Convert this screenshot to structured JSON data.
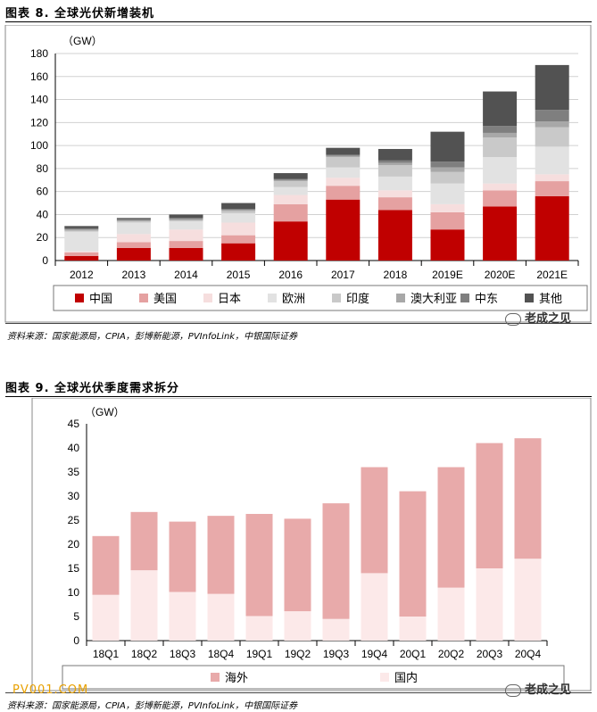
{
  "chart1_title": "图表 8. 全球光伏新增装机",
  "chart2_title": "图表 9. 全球光伏季度需求拆分",
  "source_text": "资料来源：国家能源局，CPIA，彭博新能源，PVInfoLink，中银国际证券",
  "watermark": "老成之见",
  "site_watermark": "PV001.COM",
  "chart_data": [
    {
      "type": "bar",
      "stacked": true,
      "title": "图表 8. 全球光伏新增装机",
      "unit_label": "（GW）",
      "categories": [
        "2012",
        "2013",
        "2014",
        "2015",
        "2016",
        "2017",
        "2018",
        "2019E",
        "2020E",
        "2021E"
      ],
      "ylim": [
        0,
        180
      ],
      "yticks": [
        0,
        20,
        40,
        60,
        80,
        100,
        120,
        140,
        160,
        180
      ],
      "grid": true,
      "legend_position": "bottom",
      "series": [
        {
          "name": "中国",
          "color": "#c00000",
          "values": [
            4,
            11,
            11,
            15,
            34,
            53,
            44,
            27,
            47,
            56
          ]
        },
        {
          "name": "美国",
          "color": "#e5a1a1",
          "values": [
            3,
            5,
            6,
            7,
            15,
            12,
            11,
            15,
            14,
            13
          ]
        },
        {
          "name": "日本",
          "color": "#f6dede",
          "values": [
            1,
            7,
            10,
            11,
            8,
            7,
            6,
            7,
            6,
            6
          ]
        },
        {
          "name": "欧洲",
          "color": "#e2e2e2",
          "values": [
            17,
            10,
            7,
            8,
            7,
            9,
            12,
            18,
            23,
            24
          ]
        },
        {
          "name": "印度",
          "color": "#c9c9c9",
          "values": [
            1,
            1,
            1,
            2,
            5,
            9,
            10,
            10,
            17,
            17
          ]
        },
        {
          "name": "澳大利亚",
          "color": "#a8a8a8",
          "values": [
            1,
            1,
            1,
            1,
            1,
            1,
            2,
            4,
            4,
            5
          ]
        },
        {
          "name": "中东",
          "color": "#7f7f7f",
          "values": [
            1,
            1,
            1,
            1,
            1,
            1,
            2,
            5,
            6,
            10
          ]
        },
        {
          "name": "其他",
          "color": "#525252",
          "values": [
            2,
            1,
            3,
            5,
            5,
            6,
            10,
            26,
            30,
            39
          ]
        }
      ]
    },
    {
      "type": "bar",
      "stacked": true,
      "title": "图表 9. 全球光伏季度需求拆分",
      "unit_label": "（GW）",
      "categories": [
        "18Q1",
        "18Q2",
        "18Q3",
        "18Q4",
        "19Q1",
        "19Q2",
        "19Q3",
        "19Q4",
        "20Q1",
        "20Q2",
        "20Q3",
        "20Q4"
      ],
      "ylim": [
        0,
        45
      ],
      "yticks": [
        0,
        5,
        10,
        15,
        20,
        25,
        30,
        35,
        40,
        45
      ],
      "grid": false,
      "legend_position": "bottom",
      "series": [
        {
          "name": "国内",
          "color": "#fce9e9",
          "values": [
            9.5,
            14.6,
            10.1,
            9.7,
            5.1,
            6.1,
            4.5,
            14,
            5,
            11,
            15,
            17
          ]
        },
        {
          "name": "海外",
          "color": "#e8aaaa",
          "values": [
            12.2,
            12.1,
            14.6,
            16.2,
            21.2,
            19.2,
            24,
            22,
            26,
            25,
            26,
            25
          ]
        }
      ],
      "legend_order": [
        "海外",
        "国内"
      ]
    }
  ]
}
